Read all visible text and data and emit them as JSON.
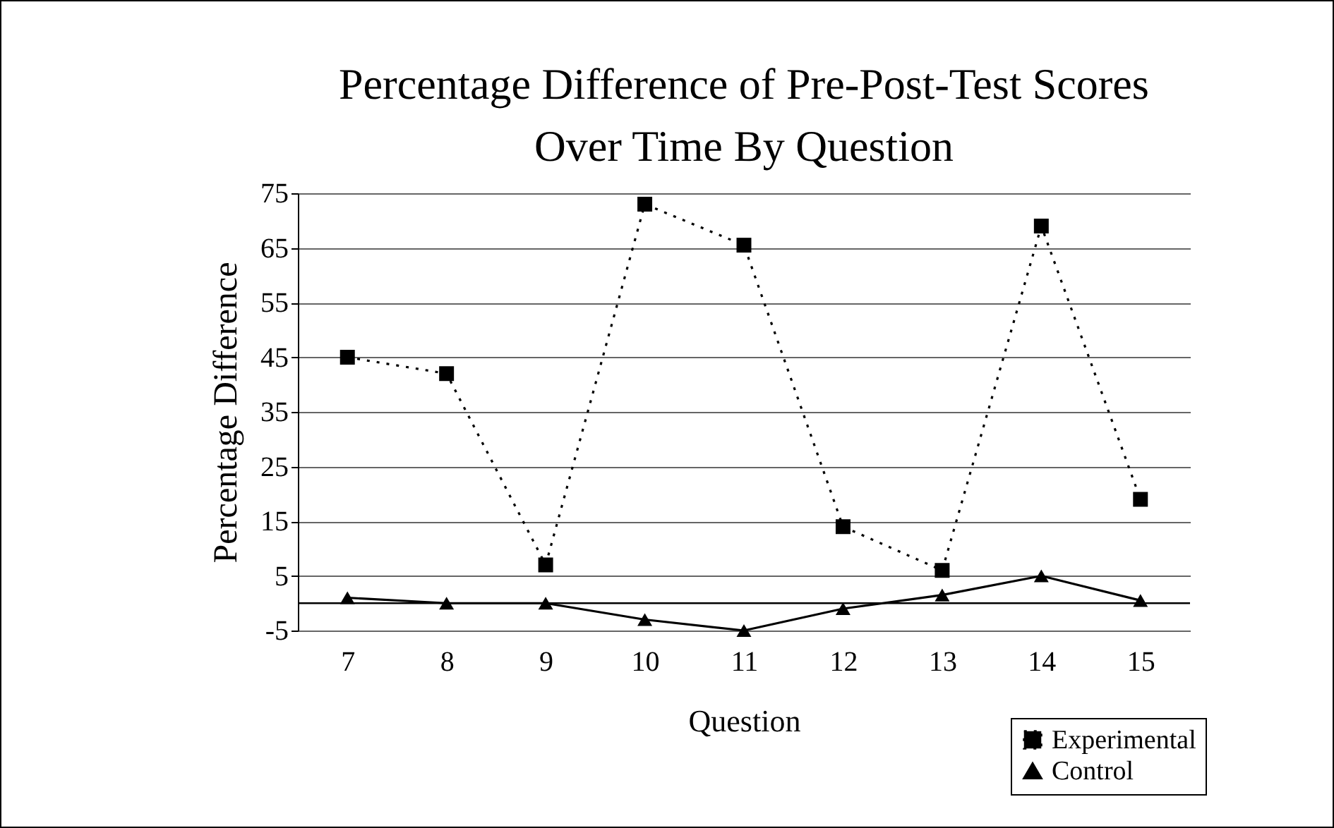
{
  "chart_data": {
    "type": "line",
    "title": "Percentage Difference of Pre-Post-Test Scores Over Time By Question",
    "xlabel": "Question",
    "ylabel": "Percentage Difference",
    "categories": [
      "7",
      "8",
      "9",
      "10",
      "11",
      "12",
      "13",
      "14",
      "15"
    ],
    "series": [
      {
        "name": "Experimental",
        "color": "#000000",
        "marker": "square",
        "line_style": "dotted",
        "values": [
          45,
          42,
          7,
          73,
          65.5,
          14,
          6,
          69,
          19
        ]
      },
      {
        "name": "Control",
        "color": "#000000",
        "marker": "triangle",
        "line_style": "solid",
        "values": [
          1,
          0,
          0,
          -3,
          -5,
          -1,
          1.5,
          5,
          0.5
        ]
      }
    ],
    "ylim": [
      -5,
      75
    ],
    "yticks": [
      -5,
      5,
      15,
      25,
      35,
      45,
      55,
      65,
      75
    ],
    "grid": "y",
    "legend": "bottom right",
    "ref_lines": [
      {
        "axis": "y",
        "value": 0,
        "color": "#000000"
      }
    ]
  }
}
